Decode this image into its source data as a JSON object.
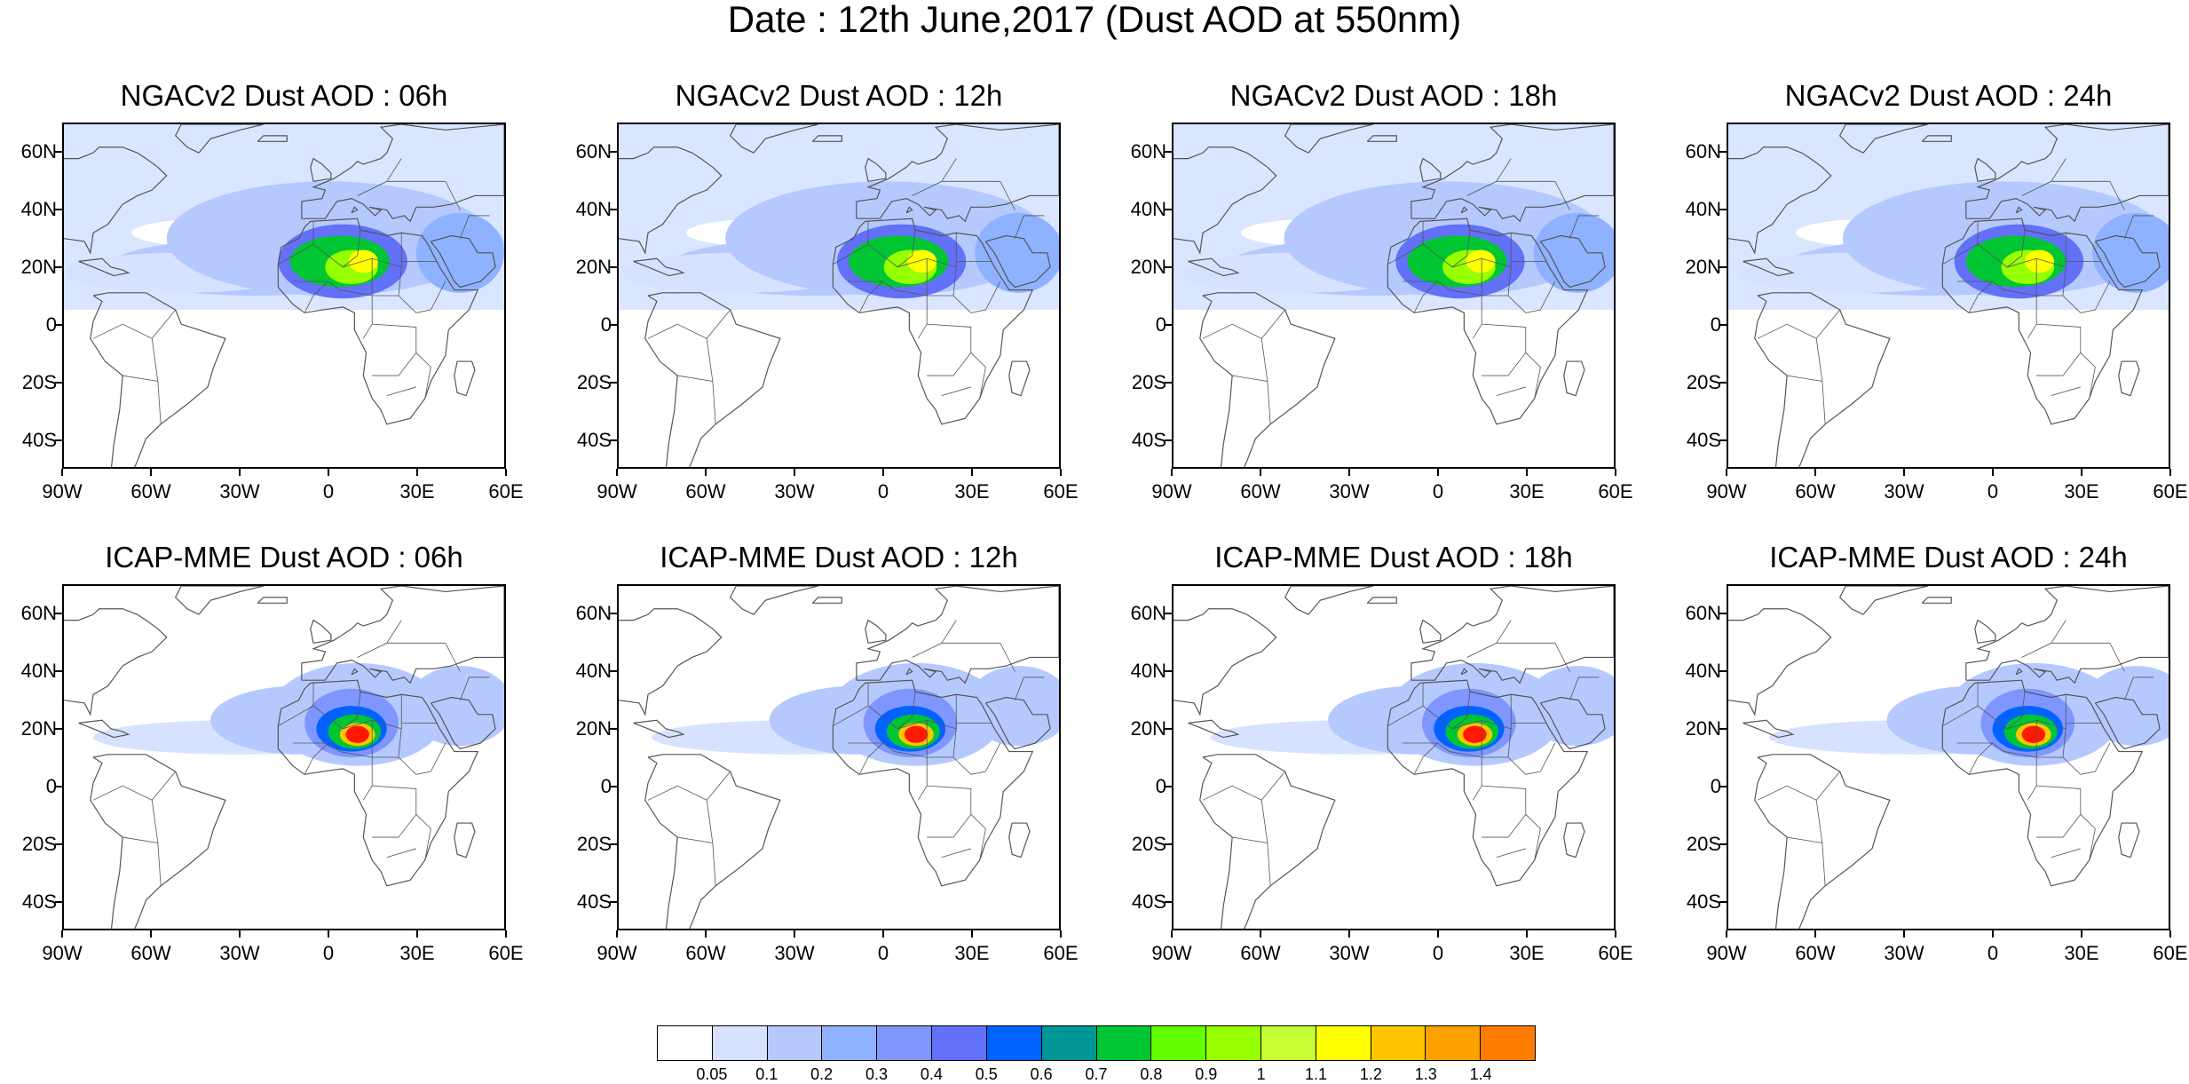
{
  "title": "Date : 12th June,2017 (Dust AOD at 550nm)",
  "lat_labels": [
    "60N",
    "40N",
    "20N",
    "0",
    "20S",
    "40S"
  ],
  "lon_labels": [
    "90W",
    "60W",
    "30W",
    "0",
    "30E",
    "60E"
  ],
  "panels": [
    {
      "title": "NGACv2 Dust AOD : 06h",
      "model": "NGACv2",
      "hour": 6
    },
    {
      "title": "NGACv2 Dust AOD : 12h",
      "model": "NGACv2",
      "hour": 12
    },
    {
      "title": "NGACv2 Dust AOD : 18h",
      "model": "NGACv2",
      "hour": 18
    },
    {
      "title": "NGACv2 Dust AOD : 24h",
      "model": "NGACv2",
      "hour": 24
    },
    {
      "title": "ICAP-MME Dust AOD : 06h",
      "model": "ICAP-MME",
      "hour": 6
    },
    {
      "title": "ICAP-MME Dust AOD : 12h",
      "model": "ICAP-MME",
      "hour": 12
    },
    {
      "title": "ICAP-MME Dust AOD : 18h",
      "model": "ICAP-MME",
      "hour": 18
    },
    {
      "title": "ICAP-MME Dust AOD : 24h",
      "model": "ICAP-MME",
      "hour": 24
    }
  ],
  "colorbar": {
    "labels": [
      "0.05",
      "0.1",
      "0.2",
      "0.3",
      "0.4",
      "0.5",
      "0.6",
      "0.7",
      "0.8",
      "0.9",
      "1",
      "1.1",
      "1.2",
      "1.3",
      "1.4"
    ],
    "colors": [
      "#ffffff",
      "#d6e2ff",
      "#b5c9ff",
      "#8eb2ff",
      "#7f96ff",
      "#6370f8",
      "#0063ff",
      "#009696",
      "#00c633",
      "#63ff00",
      "#96ff00",
      "#c6ff33",
      "#ffff00",
      "#ffc600",
      "#ffa000",
      "#ff7c00",
      "#ff1900"
    ]
  },
  "colors": {
    "coastline": "#555555",
    "ngac_background": "#d6e2ff",
    "icap_background": "#ffffff"
  }
}
